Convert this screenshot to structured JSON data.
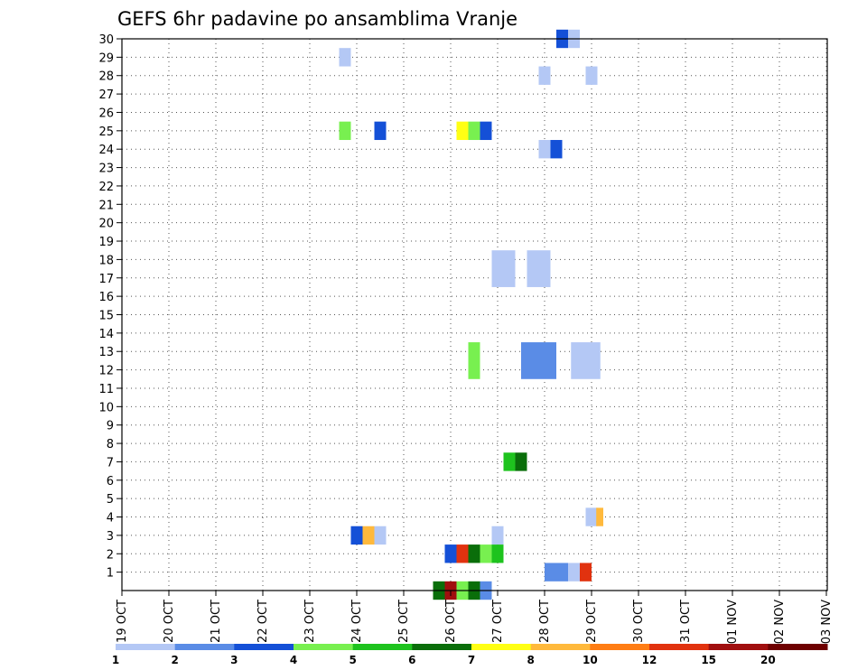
{
  "chart_data": {
    "type": "heatmap",
    "title": "GEFS 6hr padavine po ansamblima Vranje",
    "x_tick_labels": [
      "19 OCT",
      "20 OCT",
      "21 OCT",
      "22 OCT",
      "23 OCT",
      "24 OCT",
      "25 OCT",
      "26 OCT",
      "27 OCT",
      "28 OCT",
      "29 OCT",
      "30 OCT",
      "31 OCT",
      "01 NOV",
      "02 NOV",
      "03 NOV"
    ],
    "y_tick_labels": [
      "1",
      "2",
      "3",
      "4",
      "5",
      "6",
      "7",
      "8",
      "9",
      "10",
      "11",
      "12",
      "13",
      "14",
      "15",
      "16",
      "17",
      "18",
      "19",
      "20",
      "21",
      "22",
      "23",
      "24",
      "25",
      "26",
      "27",
      "28",
      "29",
      "30"
    ],
    "ylim": [
      0,
      30
    ],
    "xlim_steps": [
      0,
      60
    ],
    "grid": "dotted",
    "colorbar": {
      "levels": [
        "1",
        "2",
        "3",
        "4",
        "5",
        "6",
        "7",
        "8",
        "10",
        "12",
        "15",
        "20"
      ],
      "colors": [
        "#b4c8f5",
        "#5a8ce6",
        "#1450d7",
        "#78f050",
        "#1ec31e",
        "#0a6e0a",
        "#ffff14",
        "#ffb93c",
        "#ff7d14",
        "#e1320f",
        "#a00f0f",
        "#6e0000"
      ]
    },
    "cells": [
      {
        "step": 37.5,
        "member": 30,
        "color": "#1450d7",
        "w": 1
      },
      {
        "step": 38.5,
        "member": 30,
        "color": "#b4c8f5",
        "w": 1
      },
      {
        "step": 19,
        "member": 29,
        "color": "#b4c8f5",
        "w": 1
      },
      {
        "step": 36,
        "member": 28,
        "color": "#b4c8f5",
        "w": 1
      },
      {
        "step": 40,
        "member": 28,
        "color": "#b4c8f5",
        "w": 1
      },
      {
        "step": 19,
        "member": 25,
        "color": "#78f050",
        "w": 1
      },
      {
        "step": 22,
        "member": 25,
        "color": "#1450d7",
        "w": 1
      },
      {
        "step": 29,
        "member": 25,
        "color": "#ffff14",
        "w": 1
      },
      {
        "step": 30,
        "member": 25,
        "color": "#78f050",
        "w": 1
      },
      {
        "step": 31,
        "member": 25,
        "color": "#1450d7",
        "w": 1
      },
      {
        "step": 36,
        "member": 24,
        "color": "#b4c8f5",
        "w": 1
      },
      {
        "step": 37,
        "member": 24,
        "color": "#1450d7",
        "w": 1
      },
      {
        "step": 32.5,
        "member": 17.5,
        "color": "#b4c8f5",
        "w": 2,
        "h": 2
      },
      {
        "step": 35.5,
        "member": 17.5,
        "color": "#b4c8f5",
        "w": 2,
        "h": 2
      },
      {
        "step": 30,
        "member": 12.5,
        "color": "#78f050",
        "w": 1,
        "h": 2
      },
      {
        "step": 35.5,
        "member": 12.5,
        "color": "#5a8ce6",
        "w": 3,
        "h": 2
      },
      {
        "step": 39.5,
        "member": 12.5,
        "color": "#b4c8f5",
        "w": 2.5,
        "h": 2
      },
      {
        "step": 33,
        "member": 7,
        "color": "#1ec31e",
        "w": 1
      },
      {
        "step": 34,
        "member": 7,
        "color": "#0a6e0a",
        "w": 1
      },
      {
        "step": 40,
        "member": 4,
        "color": "#b4c8f5",
        "w": 1
      },
      {
        "step": 40.7,
        "member": 4,
        "color": "#ffb93c",
        "w": 0.6
      },
      {
        "step": 20,
        "member": 3,
        "color": "#1450d7",
        "w": 1
      },
      {
        "step": 21,
        "member": 3,
        "color": "#ffb93c",
        "w": 1
      },
      {
        "step": 22,
        "member": 3,
        "color": "#b4c8f5",
        "w": 1
      },
      {
        "step": 32,
        "member": 3,
        "color": "#b4c8f5",
        "w": 1
      },
      {
        "step": 28,
        "member": 2,
        "color": "#1450d7",
        "w": 1
      },
      {
        "step": 29,
        "member": 2,
        "color": "#e1320f",
        "w": 1
      },
      {
        "step": 30,
        "member": 2,
        "color": "#0a6e0a",
        "w": 1
      },
      {
        "step": 31,
        "member": 2,
        "color": "#78f050",
        "w": 1
      },
      {
        "step": 32,
        "member": 2,
        "color": "#1ec31e",
        "w": 1
      },
      {
        "step": 37,
        "member": 1,
        "color": "#5a8ce6",
        "w": 2
      },
      {
        "step": 38.5,
        "member": 1,
        "color": "#b4c8f5",
        "w": 1
      },
      {
        "step": 39.5,
        "member": 1,
        "color": "#e1320f",
        "w": 1
      },
      {
        "step": 27,
        "member": 0,
        "color": "#0a6e0a",
        "w": 1
      },
      {
        "step": 28,
        "member": 0,
        "color": "#a00f0f",
        "w": 1
      },
      {
        "step": 29,
        "member": 0,
        "color": "#78f050",
        "w": 1
      },
      {
        "step": 30,
        "member": 0,
        "color": "#0a6e0a",
        "w": 1
      },
      {
        "step": 31,
        "member": 0,
        "color": "#5a8ce6",
        "w": 1
      }
    ]
  }
}
